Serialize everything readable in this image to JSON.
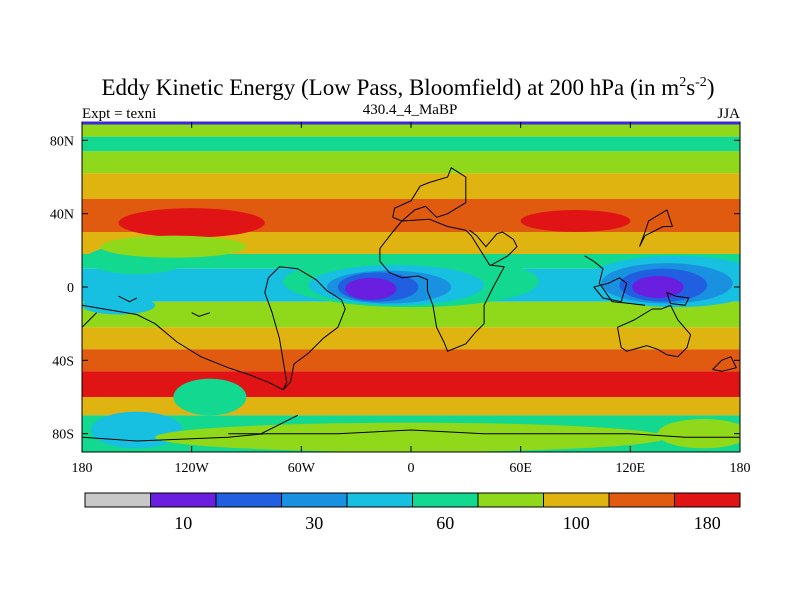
{
  "chart_data": {
    "type": "heatmap",
    "title_main": "Eddy Kinetic Energy (Low Pass, Bloomfield) at 200 hPa (in m",
    "title_unit_m_exp": "2",
    "title_unit_s": "s",
    "title_unit_s_exp": "-2",
    "title_close": ")",
    "left_label": "Expt = texni",
    "center_label": "430.4_4_MaBP",
    "right_label": "JJA",
    "x_ticks": [
      {
        "value": -180,
        "label": "180"
      },
      {
        "value": -120,
        "label": "120W"
      },
      {
        "value": -60,
        "label": "60W"
      },
      {
        "value": 0,
        "label": "0"
      },
      {
        "value": 60,
        "label": "60E"
      },
      {
        "value": 120,
        "label": "120E"
      },
      {
        "value": 180,
        "label": "180"
      }
    ],
    "y_ticks": [
      {
        "value": 80,
        "label": "80N"
      },
      {
        "value": 40,
        "label": "40N"
      },
      {
        "value": 0,
        "label": "0"
      },
      {
        "value": -40,
        "label": "40S"
      },
      {
        "value": -80,
        "label": "80S"
      }
    ],
    "xlim": [
      -180,
      180
    ],
    "ylim": [
      -90,
      90
    ],
    "colorbar": {
      "levels": [
        "",
        "10",
        "",
        "30",
        "",
        "60",
        "",
        "100",
        "",
        "180"
      ],
      "colors": [
        "#c8c8c8",
        "#6a1ee0",
        "#1f5fe0",
        "#1a90e0",
        "#17c0e0",
        "#12d890",
        "#90d81a",
        "#e0b410",
        "#e05a10",
        "#e01414"
      ]
    },
    "bands": [
      {
        "lat_top": 90,
        "lat_bot": 82,
        "level": 6
      },
      {
        "lat_top": 82,
        "lat_bot": 74,
        "level": 5
      },
      {
        "lat_top": 74,
        "lat_bot": 62,
        "level": 6
      },
      {
        "lat_top": 62,
        "lat_bot": 48,
        "level": 7
      },
      {
        "lat_top": 48,
        "lat_bot": 30,
        "level": 8
      },
      {
        "lat_top": 30,
        "lat_bot": 18,
        "level": 7
      },
      {
        "lat_top": 18,
        "lat_bot": 10,
        "level": 5
      },
      {
        "lat_top": 10,
        "lat_bot": -8,
        "level": 4
      },
      {
        "lat_top": -8,
        "lat_bot": -22,
        "level": 6
      },
      {
        "lat_top": -22,
        "lat_bot": -34,
        "level": 7
      },
      {
        "lat_top": -34,
        "lat_bot": -46,
        "level": 8
      },
      {
        "lat_top": -46,
        "lat_bot": -60,
        "level": 9
      },
      {
        "lat_top": -60,
        "lat_bot": -70,
        "level": 7
      },
      {
        "lat_top": -70,
        "lat_bot": -90,
        "level": 5
      }
    ],
    "blobs": [
      {
        "lon": -150,
        "lat": 15,
        "rlon": 28,
        "rlat": 8,
        "level": 5
      },
      {
        "lon": 0,
        "lat": 3,
        "rlon": 70,
        "rlat": 14,
        "level": 5
      },
      {
        "lon": -8,
        "lat": 1,
        "rlon": 48,
        "rlat": 11,
        "level": 4
      },
      {
        "lon": -12,
        "lat": 0,
        "rlon": 34,
        "rlat": 9,
        "level": 3
      },
      {
        "lon": -18,
        "lat": 0,
        "rlon": 22,
        "rlat": 8,
        "level": 2
      },
      {
        "lon": -22,
        "lat": -1,
        "rlon": 14,
        "rlat": 6,
        "level": 1
      },
      {
        "lon": 145,
        "lat": 3,
        "rlon": 50,
        "rlat": 14,
        "level": 4
      },
      {
        "lon": 140,
        "lat": 2,
        "rlon": 36,
        "rlat": 11,
        "level": 3
      },
      {
        "lon": 138,
        "lat": 1,
        "rlon": 24,
        "rlat": 9,
        "level": 2
      },
      {
        "lon": 135,
        "lat": 0,
        "rlon": 14,
        "rlat": 6,
        "level": 1
      },
      {
        "lon": -120,
        "lat": 35,
        "rlon": 40,
        "rlat": 8,
        "level": 9
      },
      {
        "lon": 90,
        "lat": 36,
        "rlon": 30,
        "rlat": 6,
        "level": 9
      },
      {
        "lon": -130,
        "lat": 22,
        "rlon": 40,
        "rlat": 6,
        "level": 6
      },
      {
        "lon": -110,
        "lat": -60,
        "rlon": 20,
        "rlat": 10,
        "level": 5
      },
      {
        "lon": -150,
        "lat": -78,
        "rlon": 25,
        "rlat": 10,
        "level": 4
      },
      {
        "lon": 160,
        "lat": -80,
        "rlon": 25,
        "rlat": 8,
        "level": 6
      },
      {
        "lon": 0,
        "lat": -82,
        "rlon": 140,
        "rlat": 8,
        "level": 6
      },
      {
        "lon": -160,
        "lat": -10,
        "rlon": 20,
        "rlat": 5,
        "level": 4
      }
    ],
    "coastlines": [
      [
        [
          -180,
          -10
        ],
        [
          -168,
          -12
        ],
        [
          -150,
          -15
        ],
        [
          -140,
          -20
        ],
        [
          -128,
          -30
        ],
        [
          -115,
          -38
        ],
        [
          -100,
          -44
        ],
        [
          -88,
          -48
        ],
        [
          -78,
          -52
        ],
        [
          -70,
          -56
        ],
        [
          -68,
          -52
        ],
        [
          -70,
          -40
        ],
        [
          -72,
          -28
        ],
        [
          -76,
          -14
        ],
        [
          -80,
          -3
        ],
        [
          -78,
          5
        ],
        [
          -72,
          11
        ],
        [
          -62,
          10
        ],
        [
          -52,
          4
        ],
        [
          -46,
          -2
        ],
        [
          -38,
          -7
        ],
        [
          -36,
          -12
        ],
        [
          -40,
          -22
        ],
        [
          -48,
          -28
        ],
        [
          -56,
          -36
        ],
        [
          -64,
          -42
        ],
        [
          -66,
          -52
        ],
        [
          -70,
          -56
        ]
      ],
      [
        [
          -17,
          14
        ],
        [
          -17,
          21
        ],
        [
          -10,
          30
        ],
        [
          -5,
          36
        ],
        [
          10,
          37
        ],
        [
          20,
          33
        ],
        [
          30,
          31
        ],
        [
          33,
          28
        ],
        [
          43,
          12
        ],
        [
          51,
          11
        ],
        [
          45,
          0
        ],
        [
          40,
          -10
        ],
        [
          40,
          -20
        ],
        [
          35,
          -25
        ],
        [
          30,
          -31
        ],
        [
          20,
          -35
        ],
        [
          18,
          -30
        ],
        [
          14,
          -22
        ],
        [
          12,
          -10
        ],
        [
          9,
          -2
        ],
        [
          9,
          4
        ],
        [
          4,
          6
        ],
        [
          -5,
          5
        ],
        [
          -12,
          8
        ],
        [
          -17,
          14
        ]
      ],
      [
        [
          -10,
          38
        ],
        [
          -9,
          43
        ],
        [
          0,
          47
        ],
        [
          5,
          55
        ],
        [
          10,
          57
        ],
        [
          20,
          60
        ],
        [
          22,
          65
        ],
        [
          30,
          60
        ],
        [
          30,
          46
        ],
        [
          20,
          40
        ],
        [
          14,
          38
        ],
        [
          8,
          44
        ],
        [
          2,
          42
        ],
        [
          -5,
          36
        ],
        [
          -10,
          38
        ]
      ],
      [
        [
          44,
          12
        ],
        [
          53,
          17
        ],
        [
          58,
          22
        ],
        [
          56,
          26
        ],
        [
          50,
          30
        ],
        [
          47,
          29
        ],
        [
          41,
          22
        ],
        [
          36,
          28
        ],
        [
          32,
          31
        ]
      ],
      [
        [
          95,
          17
        ],
        [
          100,
          14
        ],
        [
          105,
          10
        ],
        [
          103,
          2
        ],
        [
          110,
          -8
        ],
        [
          120,
          -9
        ],
        [
          128,
          -10
        ]
      ],
      [
        [
          113,
          -22
        ],
        [
          122,
          -18
        ],
        [
          132,
          -12
        ],
        [
          137,
          -12
        ],
        [
          142,
          -10
        ],
        [
          146,
          -18
        ],
        [
          153,
          -26
        ],
        [
          151,
          -33
        ],
        [
          146,
          -38
        ],
        [
          140,
          -37
        ],
        [
          135,
          -34
        ],
        [
          129,
          -32
        ],
        [
          118,
          -35
        ],
        [
          115,
          -33
        ],
        [
          113,
          -22
        ]
      ],
      [
        [
          125,
          22
        ],
        [
          128,
          30
        ],
        [
          130,
          36
        ],
        [
          140,
          42
        ],
        [
          143,
          33
        ],
        [
          138,
          33
        ],
        [
          132,
          30
        ],
        [
          128,
          28
        ],
        [
          125,
          22
        ]
      ],
      [
        [
          -180,
          -82
        ],
        [
          -150,
          -84
        ],
        [
          -100,
          -82
        ],
        [
          -80,
          -80
        ],
        [
          -60,
          -80
        ],
        [
          -40,
          -80
        ],
        [
          0,
          -78
        ],
        [
          40,
          -80
        ],
        [
          80,
          -80
        ],
        [
          120,
          -80
        ],
        [
          150,
          -82
        ],
        [
          180,
          -82
        ]
      ],
      [
        [
          -100,
          -80
        ],
        [
          -82,
          -80
        ],
        [
          -70,
          -74
        ],
        [
          -62,
          -70
        ]
      ],
      [
        [
          165,
          -45
        ],
        [
          170,
          -40
        ],
        [
          175,
          -38
        ],
        [
          178,
          -44
        ],
        [
          170,
          -46
        ],
        [
          165,
          -45
        ]
      ],
      [
        [
          100,
          0
        ],
        [
          105,
          -6
        ],
        [
          115,
          -8
        ],
        [
          118,
          2
        ],
        [
          114,
          5
        ],
        [
          108,
          2
        ],
        [
          100,
          0
        ]
      ],
      [
        [
          145,
          -5
        ],
        [
          152,
          -6
        ],
        [
          150,
          -10
        ],
        [
          142,
          -9
        ],
        [
          140,
          -3
        ],
        [
          145,
          -5
        ]
      ],
      [
        [
          -180,
          -22
        ],
        [
          -176,
          -18
        ],
        [
          -172,
          -14
        ]
      ],
      [
        [
          -160,
          -5
        ],
        [
          -154,
          -8
        ],
        [
          -150,
          -6
        ]
      ],
      [
        [
          -120,
          -14
        ],
        [
          -116,
          -16
        ],
        [
          -110,
          -14
        ]
      ]
    ]
  }
}
